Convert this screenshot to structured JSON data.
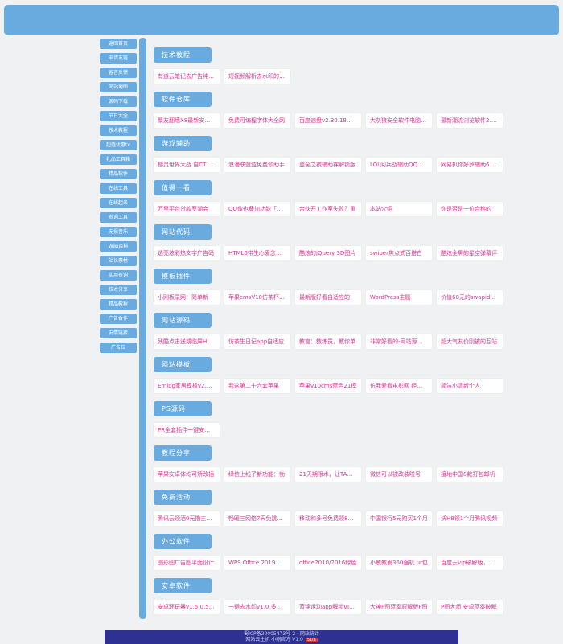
{
  "colors": {
    "accent_blue": "#69abdf",
    "card_text_pink": "#d8358f",
    "footer_bg": "#2e3192",
    "badge_red": "#e03030"
  },
  "sidebar": {
    "items": [
      "返回首页",
      "申请友链",
      "留言反馈",
      "网站地图",
      "源码下载",
      "节日大全",
      "技术教程",
      "超值优惠tv",
      "礼品工具箱",
      "精品软件",
      "在线工具",
      "在线起名",
      "查询工具",
      "无损音乐",
      "Wiki百科",
      "站长素材",
      "实用查询",
      "技术分享",
      "精品教程",
      "广告合作",
      "友情链接",
      "广告位"
    ]
  },
  "sections": [
    {
      "title": "技术教程",
      "cards": [
        "有道云笔记去广告纯净版",
        "短视频解析去水印的软件"
      ]
    },
    {
      "title": "软件仓库",
      "cards": [
        "聚友翻墙X8最新安卓人人",
        "免费可编程字体大全网",
        "百度速盘v2.30.18蓝奏",
        "大灰狼安全软件电脑蓝奏",
        "最新潮流浏览软件2.0仅"
      ]
    },
    {
      "title": "游戏辅助",
      "cards": [
        "樱灵世界大战 自CT 多功",
        "浪漫联盟盒免费领助手",
        "登全之夜辅助裸解锁版",
        "LOL阅兵战辅助QQ粉丝",
        "网易扒你好罗辅助6.2.1"
      ]
    },
    {
      "title": "值得一看",
      "cards": [
        "万里平台贷款罗湖会",
        "QQ像也叠加功能「小饭」",
        "合伙开工作室失败？重",
        "本站介绍",
        "你是否是一位合格的"
      ]
    },
    {
      "title": "网站代码",
      "cards": [
        "透亮炫彩热文字广告码",
        "HTML5带生心爱念手机",
        "酷炫的jQuery 3D图片",
        "swiper焦点式百搭白",
        "酷炫全屏的星空弹幕评"
      ]
    },
    {
      "title": "模板插件",
      "cards": [
        "小刚板录网：简单新",
        "苹果cmsV10仿茶杯风格",
        "最新版好看自适应的",
        "WordPress主题",
        "价值60元的swapidc小"
      ]
    },
    {
      "title": "网站源码",
      "cards": [
        "残酷点击送或临屏H5人",
        "仿茶生日记app自适应",
        "教官：教练员，教你单",
        "非常好看的-网站源码上",
        "超大气友价刚被的互站"
      ]
    },
    {
      "title": "网站模板",
      "cards": [
        "Emlog家居模板v2.0PHP",
        "我这第二十六套苹果",
        "苹果v10cms蓝色21模",
        "仿我爱看电影网 经典蓝",
        "简洁小清新个人"
      ]
    },
    {
      "title": "PS源码",
      "cards": [
        "PR全套插件一键安装去"
      ]
    },
    {
      "title": "教程分享",
      "cards": [
        "苹果安卓体均可矫改插",
        "绿信上线了新功能：勃",
        "21天期限术，让TA一直",
        "微信可以被改装啦号",
        "接地中国8款打包邮机"
      ]
    },
    {
      "title": "免费活动",
      "cards": [
        "腾讯云领酒0元撸三个域",
        "畅暖三网络7天免跳两金",
        "移动和多号免费领8个月",
        "中国银行5元购买1个月",
        "沃H8领1个月腾讯视频"
      ]
    },
    {
      "title": "办公软件",
      "cards": [
        "图形图广告图平面设计",
        "WPS Office 2019 激活",
        "office2010/2016绿色",
        "小敏教发360强机 ur包",
        "百度云vip破解版，速度"
      ]
    },
    {
      "title": "安卓软件",
      "cards": [
        "安卓环玩器v1.5.0.5绿化",
        "一键去水印v1.0 多平台",
        "蓝锦运动app解锁VIP版",
        "大神P图蓝奏原解版P图",
        "P图大师 安卓蓝奏破解"
      ]
    }
  ],
  "footer": {
    "line1": "蜀ICP备20005473号-2 · 网站统计",
    "line2": "网站云主机 小刚官方 V1.0",
    "badge": "51la"
  }
}
